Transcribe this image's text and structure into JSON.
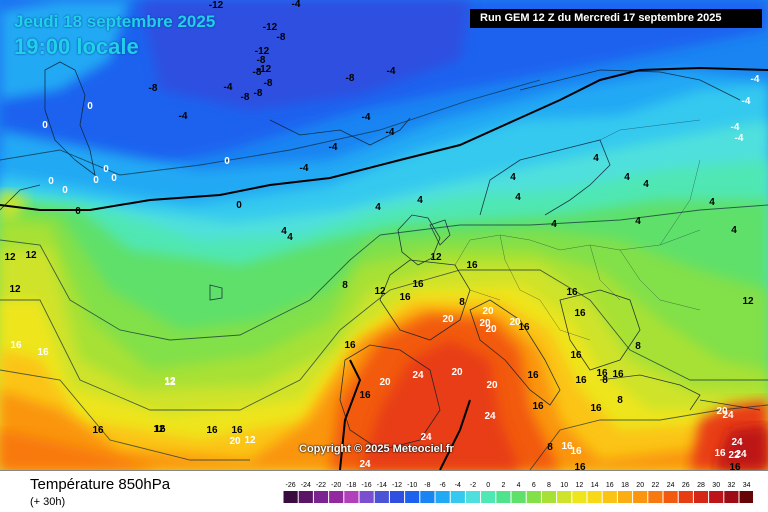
{
  "header": {
    "date": "Jeudi 18 septembre 2025",
    "time": "19:00 locale",
    "run": "Run GEM 12 Z du Mercredi 17 septembre 2025"
  },
  "copyright": "Copyright © 2025 Meteociel.fr",
  "footer": {
    "variable": "Température 850hPa",
    "lead": "(+ 30h)"
  },
  "legend": {
    "labels": [
      "-26",
      "-24",
      "-22",
      "-20",
      "-18",
      "-16",
      "-14",
      "-12",
      "-10",
      "-8",
      "-6",
      "-4",
      "-2",
      "0",
      "2",
      "4",
      "6",
      "8",
      "10",
      "12",
      "14",
      "16",
      "18",
      "20",
      "22",
      "24",
      "26",
      "28",
      "30",
      "32",
      "34"
    ],
    "colors": [
      "#3a0b3f",
      "#5a1566",
      "#7a2391",
      "#93299f",
      "#b23fbb",
      "#7a4fd0",
      "#4a52d6",
      "#2e4fe0",
      "#1d62ef",
      "#1a84f2",
      "#21a9f4",
      "#36c9ef",
      "#4fe0dd",
      "#4fe7b4",
      "#4fe38b",
      "#5ee06a",
      "#82e048",
      "#a7e135",
      "#cfe32a",
      "#eee51d",
      "#f9d817",
      "#fbc414",
      "#fbad12",
      "#fa9510",
      "#f8790f",
      "#f25a10",
      "#e83c12",
      "#d62616",
      "#bd1419",
      "#9d0c16",
      "#660406"
    ]
  },
  "map_values": [
    {
      "text": "-12",
      "color": "dark"
    },
    {
      "text": "-4",
      "color": "dark"
    },
    {
      "text": "-12",
      "color": "dark"
    },
    {
      "text": "-8",
      "color": "dark"
    },
    {
      "text": "-12",
      "color": "dark"
    },
    {
      "text": "-8",
      "color": "dark"
    },
    {
      "text": "-12",
      "color": "dark"
    },
    {
      "text": "-8",
      "color": "dark"
    },
    {
      "text": "-8",
      "color": "dark"
    },
    {
      "text": "-8",
      "color": "dark"
    },
    {
      "text": "-8",
      "color": "dark"
    },
    {
      "text": "-8",
      "color": "dark"
    },
    {
      "text": "-8",
      "color": "dark"
    },
    {
      "text": "-4",
      "color": "dark"
    },
    {
      "text": "-4",
      "color": "dark"
    },
    {
      "text": "-4",
      "color": "dark"
    },
    {
      "text": "-4",
      "color": "dark"
    },
    {
      "text": "-4",
      "color": "dark"
    },
    {
      "text": "-4",
      "color": "dark"
    },
    {
      "text": "-4",
      "color": "dark"
    },
    {
      "text": "0",
      "color": "light"
    },
    {
      "text": "0",
      "color": "light"
    },
    {
      "text": "0",
      "color": "light"
    },
    {
      "text": "0",
      "color": "light"
    },
    {
      "text": "0",
      "color": "light"
    },
    {
      "text": "0",
      "color": "light"
    },
    {
      "text": "0",
      "color": "light"
    },
    {
      "text": "0",
      "color": "light"
    },
    {
      "text": "0",
      "color": "dark"
    },
    {
      "text": "0",
      "color": "dark"
    },
    {
      "text": "4",
      "color": "dark"
    },
    {
      "text": "4",
      "color": "dark"
    },
    {
      "text": "4",
      "color": "dark"
    },
    {
      "text": "4",
      "color": "dark"
    },
    {
      "text": "4",
      "color": "dark"
    },
    {
      "text": "4",
      "color": "dark"
    },
    {
      "text": "4",
      "color": "dark"
    },
    {
      "text": "4",
      "color": "dark"
    },
    {
      "text": "4",
      "color": "dark"
    },
    {
      "text": "4",
      "color": "dark"
    },
    {
      "text": "4",
      "color": "dark"
    },
    {
      "text": "-4",
      "color": "light"
    },
    {
      "text": "-4",
      "color": "light"
    },
    {
      "text": "-4",
      "color": "light"
    },
    {
      "text": "-4",
      "color": "light"
    },
    {
      "text": "4",
      "color": "dark"
    },
    {
      "text": "4",
      "color": "dark"
    },
    {
      "text": "8",
      "color": "dark"
    },
    {
      "text": "8",
      "color": "dark"
    },
    {
      "text": "8",
      "color": "dark"
    },
    {
      "text": "8",
      "color": "dark"
    },
    {
      "text": "12",
      "color": "dark"
    },
    {
      "text": "12",
      "color": "dark"
    },
    {
      "text": "12",
      "color": "dark"
    },
    {
      "text": "12",
      "color": "dark"
    },
    {
      "text": "12",
      "color": "dark"
    },
    {
      "text": "12",
      "color": "dark"
    },
    {
      "text": "12",
      "color": "dark"
    },
    {
      "text": "16",
      "color": "dark"
    },
    {
      "text": "16",
      "color": "dark"
    },
    {
      "text": "16",
      "color": "dark"
    },
    {
      "text": "16",
      "color": "dark"
    },
    {
      "text": "16",
      "color": "dark"
    },
    {
      "text": "16",
      "color": "dark"
    },
    {
      "text": "16",
      "color": "dark"
    },
    {
      "text": "16",
      "color": "dark"
    },
    {
      "text": "16",
      "color": "dark"
    },
    {
      "text": "16",
      "color": "dark"
    },
    {
      "text": "16",
      "color": "dark"
    },
    {
      "text": "16",
      "color": "dark"
    },
    {
      "text": "16",
      "color": "dark"
    },
    {
      "text": "16",
      "color": "dark"
    },
    {
      "text": "16",
      "color": "dark"
    },
    {
      "text": "20",
      "color": "light"
    },
    {
      "text": "20",
      "color": "light"
    },
    {
      "text": "20",
      "color": "light"
    },
    {
      "text": "20",
      "color": "light"
    },
    {
      "text": "20",
      "color": "light"
    },
    {
      "text": "20",
      "color": "light"
    },
    {
      "text": "24",
      "color": "light"
    },
    {
      "text": "24",
      "color": "light"
    },
    {
      "text": "24",
      "color": "light"
    },
    {
      "text": "24",
      "color": "light"
    },
    {
      "text": "24",
      "color": "light"
    },
    {
      "text": "20",
      "color": "light"
    },
    {
      "text": "24",
      "color": "light"
    },
    {
      "text": "24",
      "color": "light"
    },
    {
      "text": "22",
      "color": "light"
    },
    {
      "text": "20",
      "color": "light"
    },
    {
      "text": "20",
      "color": "light"
    },
    {
      "text": "20",
      "color": "light"
    },
    {
      "text": "16",
      "color": "light"
    },
    {
      "text": "16",
      "color": "light"
    },
    {
      "text": "16",
      "color": "light"
    },
    {
      "text": "16",
      "color": "light"
    },
    {
      "text": "16",
      "color": "light"
    },
    {
      "text": "16",
      "color": "dark"
    },
    {
      "text": "12",
      "color": "light"
    },
    {
      "text": "12",
      "color": "light"
    },
    {
      "text": "12",
      "color": "light"
    },
    {
      "text": "16",
      "color": "dark"
    },
    {
      "text": "16",
      "color": "dark"
    },
    {
      "text": "16",
      "color": "dark"
    },
    {
      "text": "8",
      "color": "dark"
    },
    {
      "text": "8",
      "color": "dark"
    },
    {
      "text": "16",
      "color": "dark"
    },
    {
      "text": "16",
      "color": "dark"
    },
    {
      "text": "20",
      "color": "light"
    },
    {
      "text": "20",
      "color": "light"
    },
    {
      "text": "24",
      "color": "light"
    }
  ]
}
